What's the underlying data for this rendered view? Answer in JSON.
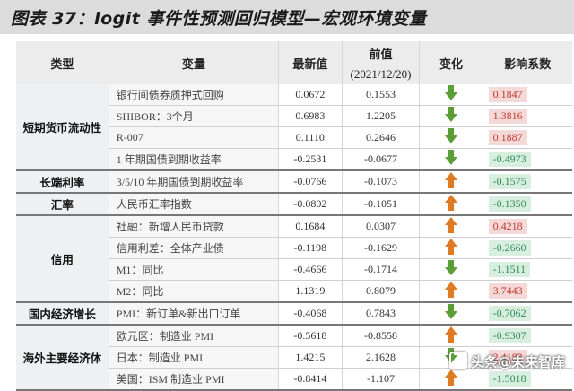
{
  "title": "图表 37：logit 事件性预测回归模型—宏观环境变量",
  "headers": {
    "type": "类型",
    "variable": "变量",
    "latest": "最新值",
    "prev": "前值",
    "prev_date": "(2021/12/20)",
    "change": "变化",
    "impact": "影响系数"
  },
  "groups": [
    {
      "name": "短期货币流动性",
      "rows": [
        {
          "variable": "银行间债券质押式回购",
          "latest": "0.0672",
          "prev": "0.1553",
          "change": "down",
          "impact": "0.1847",
          "sign": "pos"
        },
        {
          "variable": "SHIBOR：3个月",
          "latest": "0.6983",
          "prev": "1.2205",
          "change": "down",
          "impact": "1.3816",
          "sign": "pos"
        },
        {
          "variable": "R-007",
          "latest": "0.1110",
          "prev": "0.2646",
          "change": "down",
          "impact": "0.1887",
          "sign": "pos"
        },
        {
          "variable": "1 年期国债到期收益率",
          "latest": "-0.2531",
          "prev": "-0.0677",
          "change": "down",
          "impact": "-0.4973",
          "sign": "neg"
        }
      ]
    },
    {
      "name": "长端利率",
      "rows": [
        {
          "variable": "3/5/10 年期国债到期收益率",
          "latest": "-0.0766",
          "prev": "-0.1073",
          "change": "up",
          "impact": "-0.1575",
          "sign": "neg"
        }
      ]
    },
    {
      "name": "汇率",
      "rows": [
        {
          "variable": "人民币汇率指数",
          "latest": "-0.0802",
          "prev": "-0.1051",
          "change": "up",
          "impact": "-0.1350",
          "sign": "neg"
        }
      ]
    },
    {
      "name": "信用",
      "rows": [
        {
          "variable": "社融：新增人民币贷款",
          "latest": "0.1684",
          "prev": "0.0307",
          "change": "up",
          "impact": "0.4218",
          "sign": "pos"
        },
        {
          "variable": "信用利差：全体产业债",
          "latest": "-0.1198",
          "prev": "-0.1629",
          "change": "up",
          "impact": "-0.2660",
          "sign": "neg"
        },
        {
          "variable": "M1：同比",
          "latest": "-0.4666",
          "prev": "-0.1714",
          "change": "down",
          "impact": "-1.1511",
          "sign": "neg"
        },
        {
          "variable": "M2：同比",
          "latest": "1.1319",
          "prev": "0.8079",
          "change": "up",
          "impact": "3.7443",
          "sign": "pos"
        }
      ]
    },
    {
      "name": "国内经济增长",
      "rows": [
        {
          "variable": "PMI：新订单&新出口订单",
          "latest": "-0.4068",
          "prev": "0.7843",
          "change": "down",
          "impact": "-0.7062",
          "sign": "neg"
        }
      ]
    },
    {
      "name": "海外主要经济体",
      "rows": [
        {
          "variable": "欧元区：制造业 PMI",
          "latest": "-0.5618",
          "prev": "-0.8558",
          "change": "up",
          "impact": "-0.9307",
          "sign": "neg"
        },
        {
          "variable": "日本：制造业 PMI",
          "latest": "1.4215",
          "prev": "2.1628",
          "change": "down",
          "impact": "2.4183",
          "sign": "pos"
        },
        {
          "variable": "美国：ISM 制造业 PMI",
          "latest": "-0.8414",
          "prev": "-1.107",
          "change": "up",
          "impact": "-1.5018",
          "sign": "neg"
        }
      ]
    }
  ],
  "watermark": "头条@未来智库",
  "colors": {
    "up_arrow": "#e07a23",
    "down_arrow": "#5a9e35",
    "positive": "#c0392b",
    "negative": "#2e8b57"
  }
}
